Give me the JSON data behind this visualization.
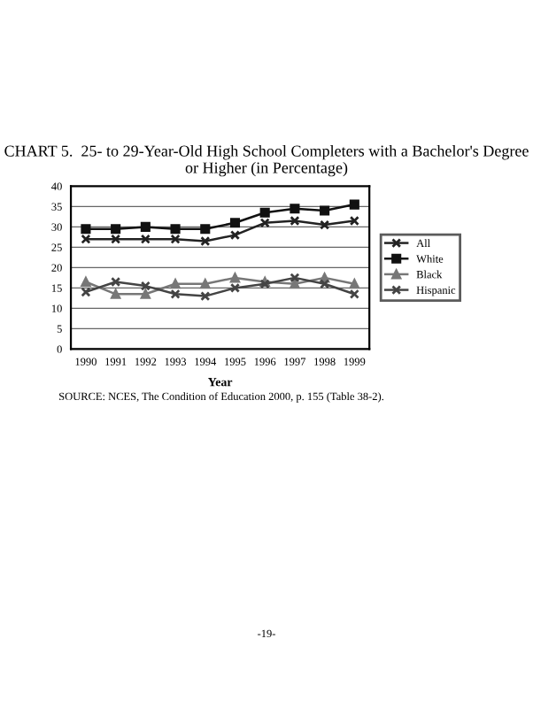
{
  "chart_data": {
    "type": "line",
    "title": "CHART 5.  25- to 29-Year-Old High School Completers with a Bachelor's Degree or Higher (in Percentage)",
    "xlabel": "Year",
    "categories": [
      "1990",
      "1991",
      "1992",
      "1993",
      "1994",
      "1995",
      "1996",
      "1997",
      "1998",
      "1999"
    ],
    "series": [
      {
        "name": "All",
        "color": "#222222",
        "marker": "cross",
        "values": [
          27,
          27,
          27,
          27,
          26.5,
          28,
          31,
          31.5,
          30.5,
          31.5
        ]
      },
      {
        "name": "White",
        "color": "#111111",
        "marker": "square",
        "values": [
          29.5,
          29.5,
          30,
          29.5,
          29.5,
          31,
          33.5,
          34.5,
          34,
          35.5
        ]
      },
      {
        "name": "Black",
        "color": "#777777",
        "marker": "triangle",
        "values": [
          16.5,
          13.5,
          13.5,
          16,
          16,
          17.5,
          16.5,
          16,
          17.5,
          16
        ]
      },
      {
        "name": "Hispanic",
        "color": "#444444",
        "marker": "cross",
        "values": [
          14,
          16.5,
          15.5,
          13.5,
          13,
          15,
          16,
          17.5,
          16,
          13.5
        ]
      }
    ],
    "ylim": [
      0,
      40
    ],
    "yticks": [
      0,
      5,
      10,
      15,
      20,
      25,
      30,
      35,
      40
    ],
    "grid": "y",
    "legend": "right",
    "annotations": [
      "SOURCE: NCES, The Condition of Education 2000, p. 155 (Table 38-2).",
      "-19-"
    ]
  }
}
